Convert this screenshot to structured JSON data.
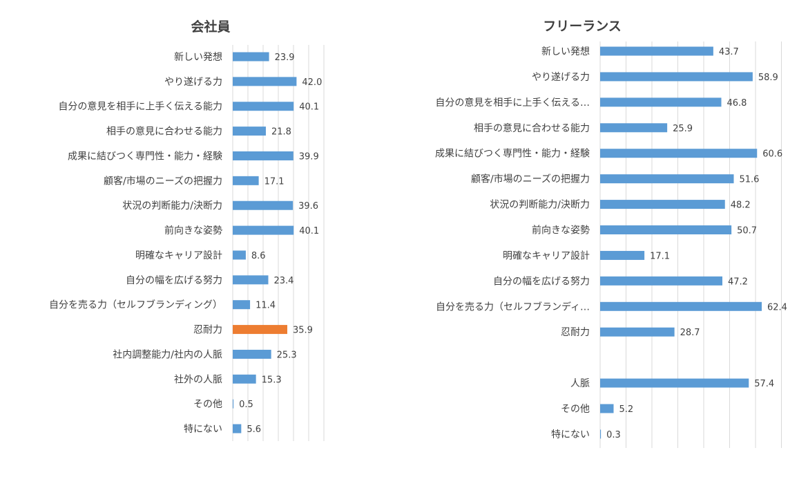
{
  "chart_data": [
    {
      "type": "bar",
      "orientation": "horizontal",
      "title": "会社員",
      "categories": [
        "新しい発想",
        "やり遂げる力",
        "自分の意見を相手に上手く伝える能力",
        "相手の意見に合わせる能力",
        "成果に結びつく専門性・能力・経験",
        "顧客/市場のニーズの把握力",
        "状況の判断能力/決断力",
        "前向きな姿勢",
        "明確なキャリア設計",
        "自分の幅を広げる努力",
        "自分を売る力（セルフブランディング）",
        "忍耐力",
        "社内調整能力/社内の人脈",
        "社外の人脈",
        "その他",
        "特にない"
      ],
      "values": [
        23.9,
        42.0,
        40.1,
        21.8,
        39.9,
        17.1,
        39.6,
        40.1,
        8.6,
        23.4,
        11.4,
        35.9,
        25.3,
        15.3,
        0.5,
        5.6
      ],
      "labels": [
        "23.9",
        "42.0",
        "40.1",
        "21.8",
        "39.9",
        "17.1",
        "39.6",
        "40.1",
        "8.6",
        "23.4",
        "11.4",
        "35.9",
        "25.3",
        "15.3",
        "0.5",
        "5.6"
      ],
      "highlight_index": 11,
      "bar_color": "#5b9bd5",
      "highlight_color": "#ed7d31",
      "xlim": [
        0,
        60
      ],
      "grid": true
    },
    {
      "type": "bar",
      "orientation": "horizontal",
      "title": "フリーランス",
      "categories": [
        "新しい発想",
        "やり遂げる力",
        "自分の意見を相手に上手く伝える…",
        "相手の意見に合わせる能力",
        "成果に結びつく専門性・能力・経験",
        "顧客/市場のニーズの把握力",
        "状況の判断能力/決断力",
        "前向きな姿勢",
        "明確なキャリア設計",
        "自分の幅を広げる努力",
        "自分を売る力（セルフブランディ…",
        "忍耐力",
        "",
        "人脈",
        "その他",
        "特にない"
      ],
      "values": [
        43.7,
        58.9,
        46.8,
        25.9,
        60.6,
        51.6,
        48.2,
        50.7,
        17.1,
        47.2,
        62.4,
        28.7,
        null,
        57.4,
        5.2,
        0.3
      ],
      "labels": [
        "43.7",
        "58.9",
        "46.8",
        "25.9",
        "60.6",
        "51.6",
        "48.2",
        "50.7",
        "17.1",
        "47.2",
        "62.4",
        "28.7",
        "",
        "57.4",
        "5.2",
        "0.3"
      ],
      "bar_color": "#5b9bd5",
      "xlim": [
        0,
        70
      ],
      "grid": true
    }
  ]
}
